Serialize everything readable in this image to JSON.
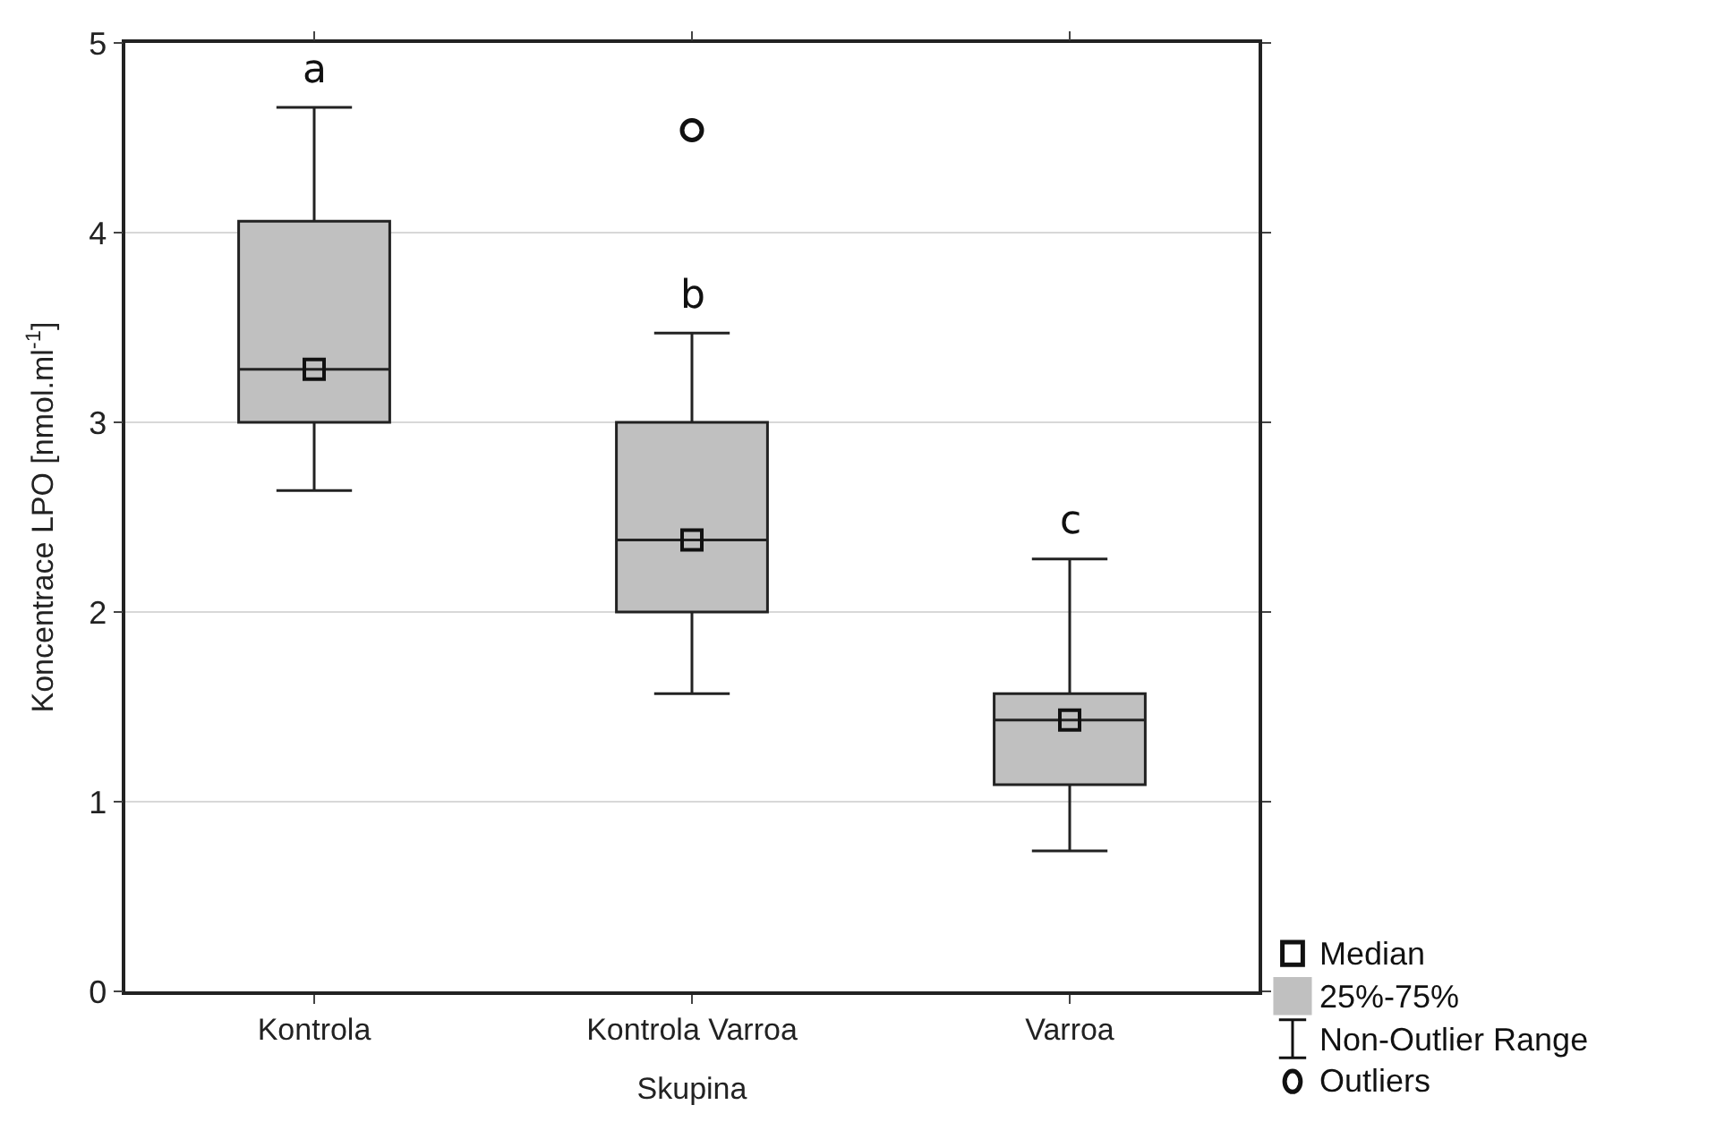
{
  "chart_data": {
    "type": "box",
    "xlabel": "Skupina",
    "ylabel": "Koncentrace LPO [nmol.ml$^{-1}$]",
    "categories": [
      "Kontrola",
      "Kontrola Varroa",
      "Varroa"
    ],
    "boxes": [
      {
        "low": 2.64,
        "q1": 3.0,
        "median": 3.28,
        "q3": 4.06,
        "high": 4.66
      },
      {
        "low": 1.57,
        "q1": 2.0,
        "median": 2.38,
        "q3": 3.0,
        "high": 3.47,
        "outliers": [
          4.54
        ]
      },
      {
        "low": 0.74,
        "q1": 1.09,
        "median": 1.43,
        "q3": 1.57,
        "high": 2.28
      }
    ],
    "color": "#c0c0c0",
    "ylim": [
      0,
      5
    ],
    "yticks": [
      0,
      1,
      2,
      3,
      4,
      5
    ],
    "grid": "y",
    "marker": "square",
    "annotations": [
      "a",
      "b",
      "c",
      "Median",
      "25%-75%",
      "Non-Outlier Range",
      "Outliers"
    ]
  }
}
